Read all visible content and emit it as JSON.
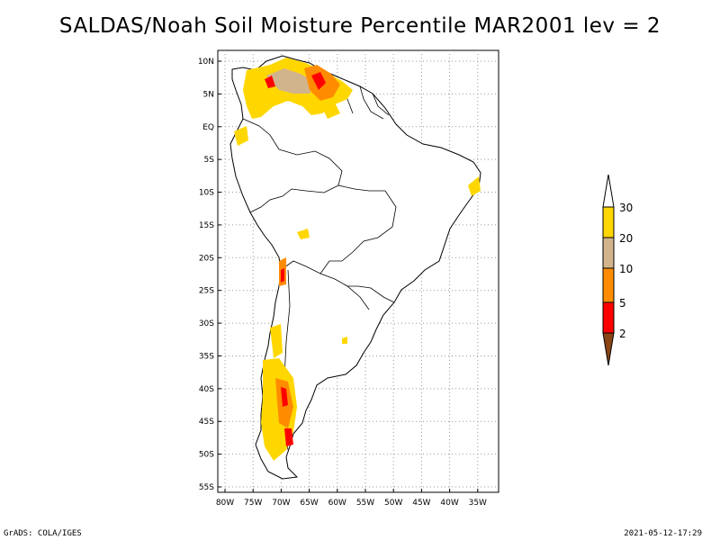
{
  "title": "SALDAS/Noah Soil Moisture Percentile MAR2001 lev = 2",
  "footer": {
    "left": "GrADS: COLA/IGES",
    "right": "2021-05-12-17:29"
  },
  "axes": {
    "lat_labels": [
      "10N",
      "5N",
      "EQ",
      "5S",
      "10S",
      "15S",
      "20S",
      "25S",
      "30S",
      "35S",
      "40S",
      "45S",
      "50S",
      "55S"
    ],
    "lon_labels": [
      "80W",
      "75W",
      "70W",
      "65W",
      "60W",
      "55W",
      "50W",
      "45W",
      "40W",
      "35W"
    ],
    "grid": "dotted"
  },
  "legend": {
    "labels": [
      "2",
      "5",
      "10",
      "20",
      "30"
    ],
    "colors": {
      "below_2": "#8b4513",
      "2_5": "#ff0000",
      "5_10": "#ff8c00",
      "10_20": "#d2b48c",
      "20_30": "#ffd700",
      "above_30": "#ffffff"
    }
  },
  "colors": {
    "coast": "#000000",
    "grid": "#999999"
  }
}
